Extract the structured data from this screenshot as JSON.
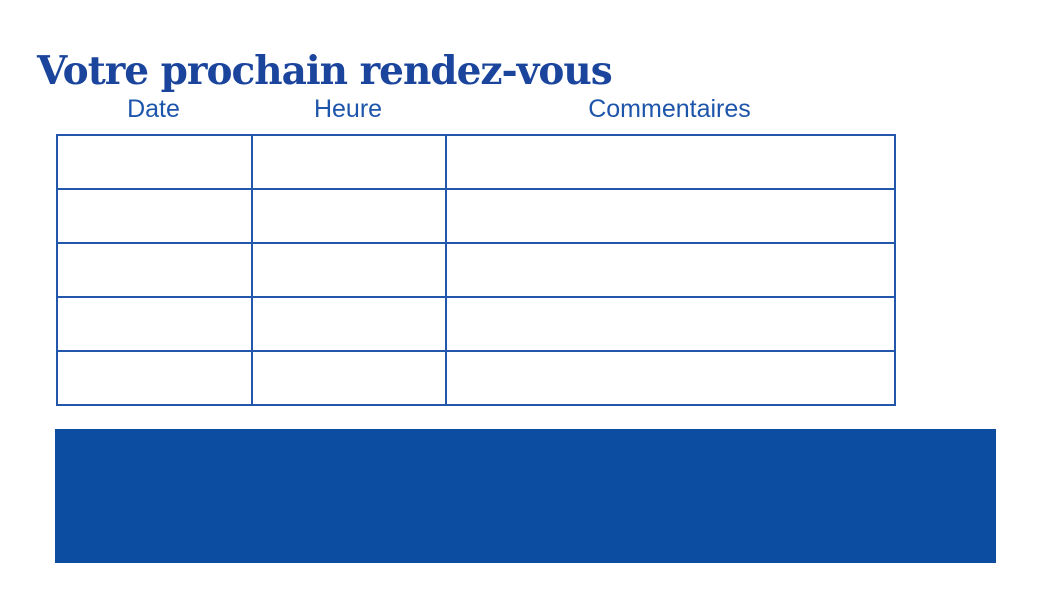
{
  "page": {
    "background_color": "#ffffff"
  },
  "title": "Votre prochain rendez-vous",
  "title_color": "#1b459c",
  "table": {
    "columns": [
      {
        "label": "Date"
      },
      {
        "label": "Heure"
      },
      {
        "label": "Commentaires"
      }
    ],
    "header_text_color": "#1d55ab",
    "border_color": "#2257ab",
    "rows": [
      [
        "",
        "",
        ""
      ],
      [
        "",
        "",
        ""
      ],
      [
        "",
        "",
        ""
      ],
      [
        "",
        "",
        ""
      ],
      [
        "",
        "",
        ""
      ]
    ]
  },
  "footer_block": {
    "color": "#0c4da2"
  }
}
